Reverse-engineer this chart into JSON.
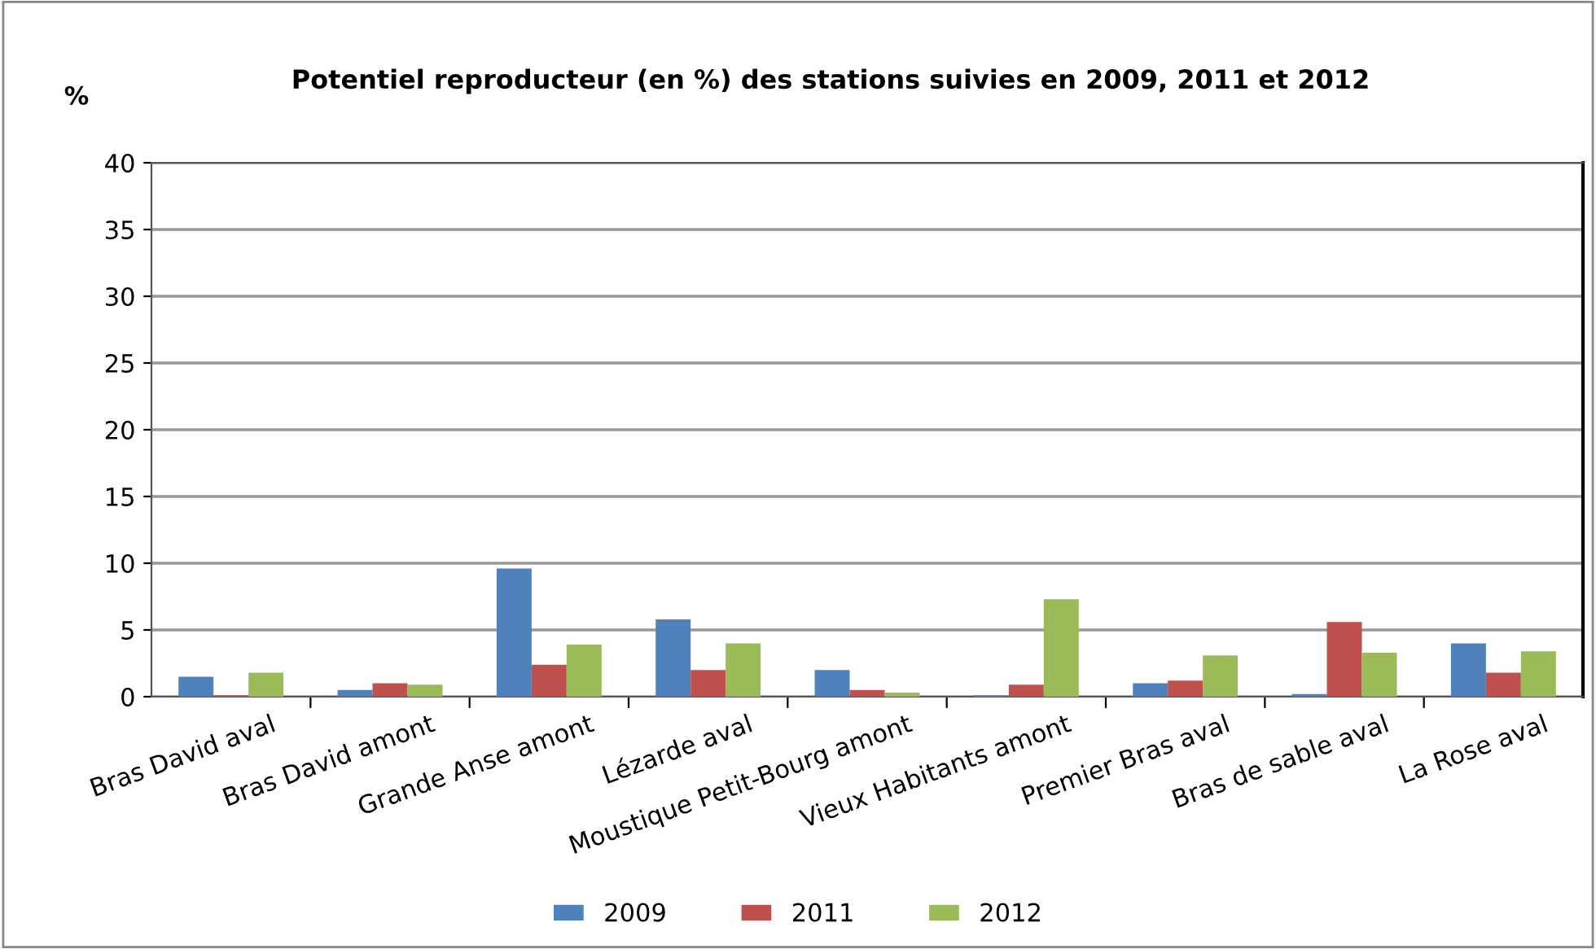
{
  "chart_data": {
    "type": "bar",
    "title": "Potentiel reproducteur (en %) des stations suivies en 2009, 2011 et 2012",
    "ylabel": "%",
    "categories": [
      "Bras David aval",
      "Bras David amont",
      "Grande Anse amont",
      "Lézarde aval",
      "Moustique Petit-Bourg amont",
      "Vieux Habitants amont",
      "Premier Bras aval",
      "Bras de sable aval",
      "La Rose aval"
    ],
    "series": [
      {
        "name": "2009",
        "color": "#4f81bd",
        "values": [
          1.5,
          0.5,
          9.6,
          5.8,
          2.0,
          0.1,
          1.0,
          0.2,
          4.0
        ]
      },
      {
        "name": "2011",
        "color": "#c0504d",
        "values": [
          0.1,
          1.0,
          2.4,
          2.0,
          0.5,
          0.9,
          1.2,
          5.6,
          1.8
        ]
      },
      {
        "name": "2012",
        "color": "#9bbb59",
        "values": [
          1.8,
          0.9,
          3.9,
          4.0,
          0.3,
          7.3,
          3.1,
          3.3,
          3.4
        ]
      }
    ],
    "ylim": [
      0,
      40
    ],
    "yticks": [
      0,
      5,
      10,
      15,
      20,
      25,
      30,
      35,
      40
    ],
    "grid": "y",
    "legend": "bottom"
  }
}
